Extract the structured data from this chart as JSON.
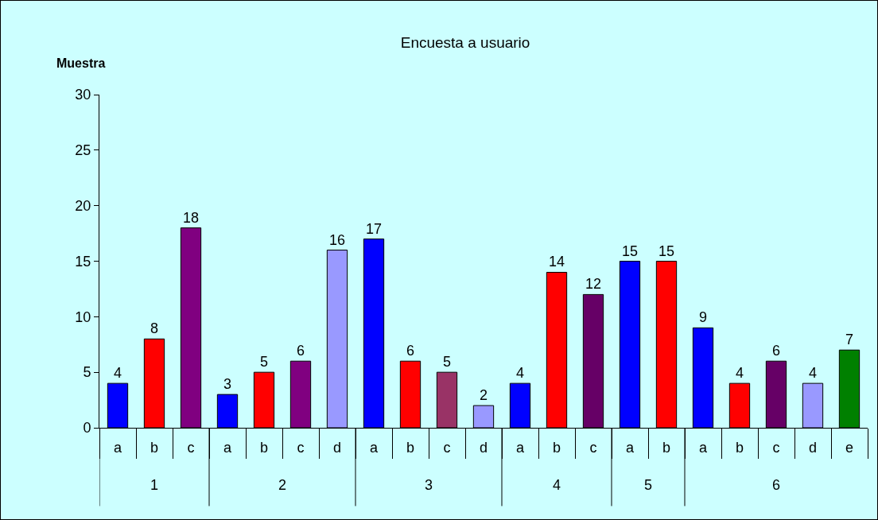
{
  "chart_data": {
    "type": "bar",
    "title": "Encuesta a usuario",
    "ylabel": "Muestra",
    "categories": [
      "a",
      "b",
      "c",
      "a",
      "b",
      "c",
      "d",
      "a",
      "b",
      "c",
      "d",
      "a",
      "b",
      "c",
      "a",
      "b",
      "a",
      "b",
      "c",
      "d",
      "e"
    ],
    "annotations": [
      "1",
      "2",
      "3",
      "4",
      "5",
      "6"
    ],
    "values": [
      4,
      8,
      18,
      3,
      5,
      6,
      16,
      17,
      6,
      5,
      2,
      4,
      14,
      12,
      15,
      15,
      9,
      4,
      6,
      4,
      7
    ],
    "colors": [
      "#0000ff",
      "#ff0000",
      "#800080",
      "#0000ff",
      "#ff0000",
      "#800080",
      "#9999ff",
      "#0000ff",
      "#ff0000",
      "#993366",
      "#9999ff",
      "#0000ff",
      "#ff0000",
      "#660066",
      "#0000ff",
      "#ff0000",
      "#0000ff",
      "#ff0000",
      "#660066",
      "#9999ff",
      "#008000"
    ],
    "ylim": [
      0,
      30
    ],
    "yticks": [
      0,
      5,
      10,
      15,
      20,
      25,
      30
    ],
    "grid": false,
    "data_labels": true
  }
}
